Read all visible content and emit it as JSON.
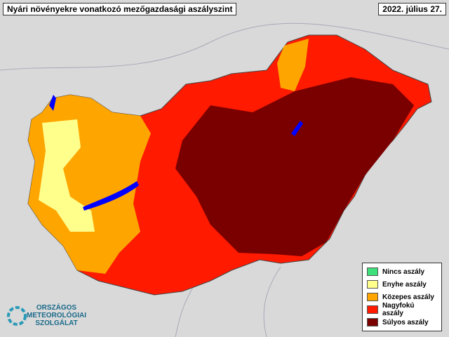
{
  "header": {
    "title": "Nyári növényekre vonatkozó mezőgazdasági aszályszint",
    "date": "2022. július 27."
  },
  "legend": {
    "items": [
      {
        "label": "Nincs aszály",
        "color": "#3ee07a"
      },
      {
        "label": "Enyhe aszály",
        "color": "#ffff8c"
      },
      {
        "label": "Közepes aszály",
        "color": "#ffa500"
      },
      {
        "label": "Nagyfokú aszály",
        "color": "#ff1a00"
      },
      {
        "label": "Súlyos aszály",
        "color": "#7a0000"
      }
    ]
  },
  "logo": {
    "lines": [
      "ORSZÁGOS",
      "METEOROLÓGIAI",
      "SZOLGÁLAT"
    ]
  }
}
